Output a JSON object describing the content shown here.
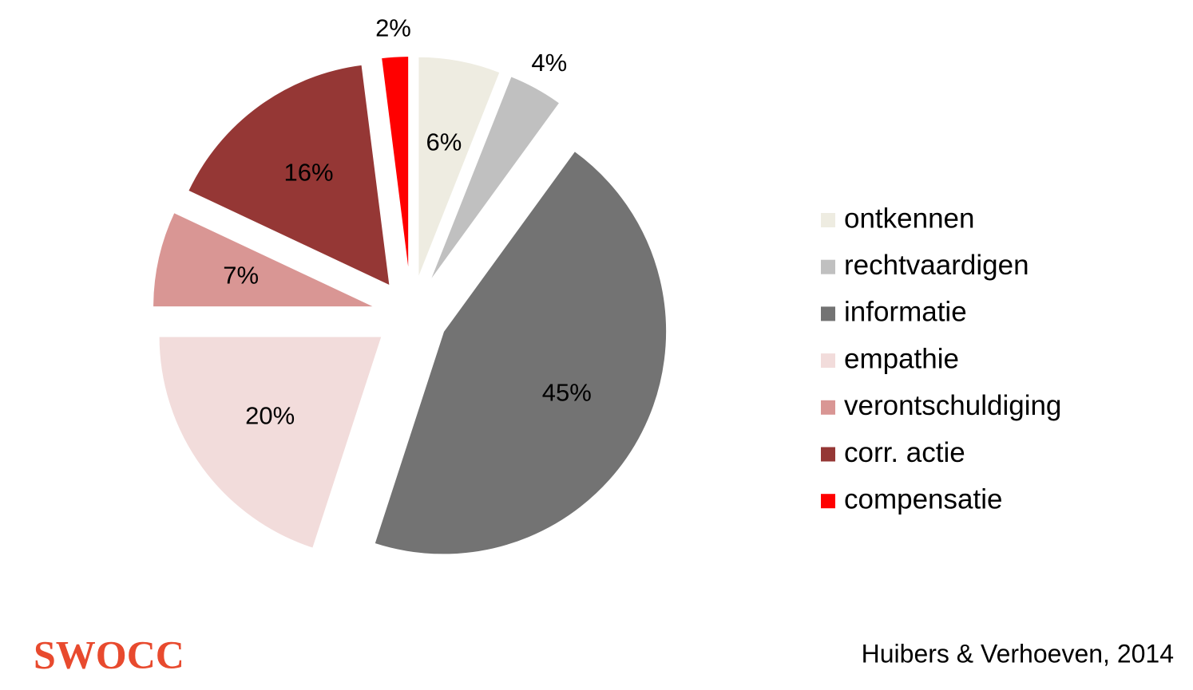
{
  "chart_data": {
    "type": "pie",
    "categories": [
      "ontkennen",
      "rechtvaardigen",
      "informatie",
      "empathie",
      "verontschuldiging",
      "corr. actie",
      "compensatie"
    ],
    "values": [
      6,
      4,
      45,
      20,
      7,
      16,
      2
    ],
    "value_labels": [
      "6%",
      "4%",
      "45%",
      "20%",
      "7%",
      "16%",
      "2%"
    ],
    "colors": [
      "#eeece1",
      "#c0c0c0",
      "#737373",
      "#f2dcdb",
      "#d99694",
      "#953735",
      "#ff0000"
    ],
    "legend": "right"
  },
  "logo": "SWOCC",
  "source": "Huibers & Verhoeven, 2014"
}
